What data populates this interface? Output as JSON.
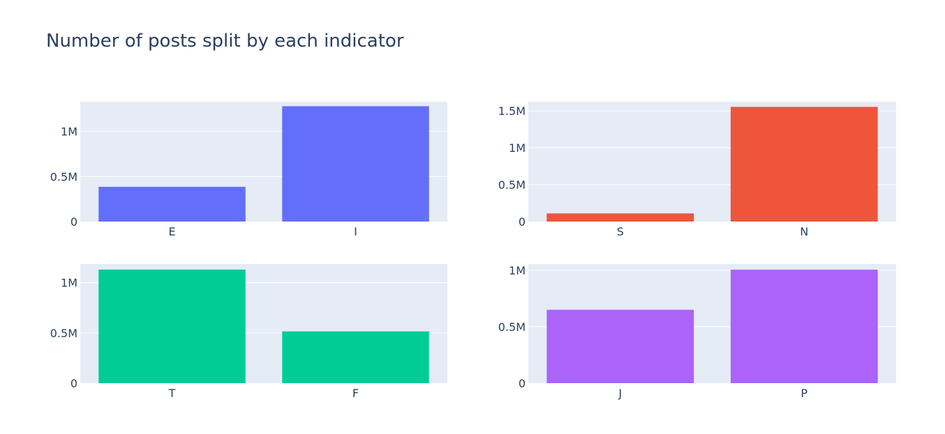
{
  "title": "Number of posts split by each indicator",
  "chart_data": [
    {
      "type": "bar",
      "categories": [
        "E",
        "I"
      ],
      "values": [
        385000,
        1280000
      ],
      "color": "#636efa",
      "ylim": [
        0,
        1330000
      ],
      "yticks": [
        0,
        500000,
        1000000
      ],
      "ytick_labels": [
        "0",
        "0.5M",
        "1M"
      ],
      "grid": true
    },
    {
      "type": "bar",
      "categories": [
        "S",
        "N"
      ],
      "values": [
        110000,
        1555000
      ],
      "color": "#ef553b",
      "ylim": [
        0,
        1625000
      ],
      "yticks": [
        0,
        500000,
        1000000,
        1500000
      ],
      "ytick_labels": [
        "0",
        "0.5M",
        "1M",
        "1.5M"
      ],
      "grid": true
    },
    {
      "type": "bar",
      "categories": [
        "T",
        "F"
      ],
      "values": [
        1130000,
        515000
      ],
      "color": "#00cc96",
      "ylim": [
        0,
        1185000
      ],
      "yticks": [
        0,
        500000,
        1000000
      ],
      "ytick_labels": [
        "0",
        "0.5M",
        "1M"
      ],
      "grid": true
    },
    {
      "type": "bar",
      "categories": [
        "J",
        "P"
      ],
      "values": [
        650000,
        1005000
      ],
      "color": "#ab63fa",
      "ylim": [
        0,
        1055000
      ],
      "yticks": [
        0,
        500000,
        1000000
      ],
      "ytick_labels": [
        "0",
        "0.5M",
        "1M"
      ],
      "grid": true
    }
  ]
}
